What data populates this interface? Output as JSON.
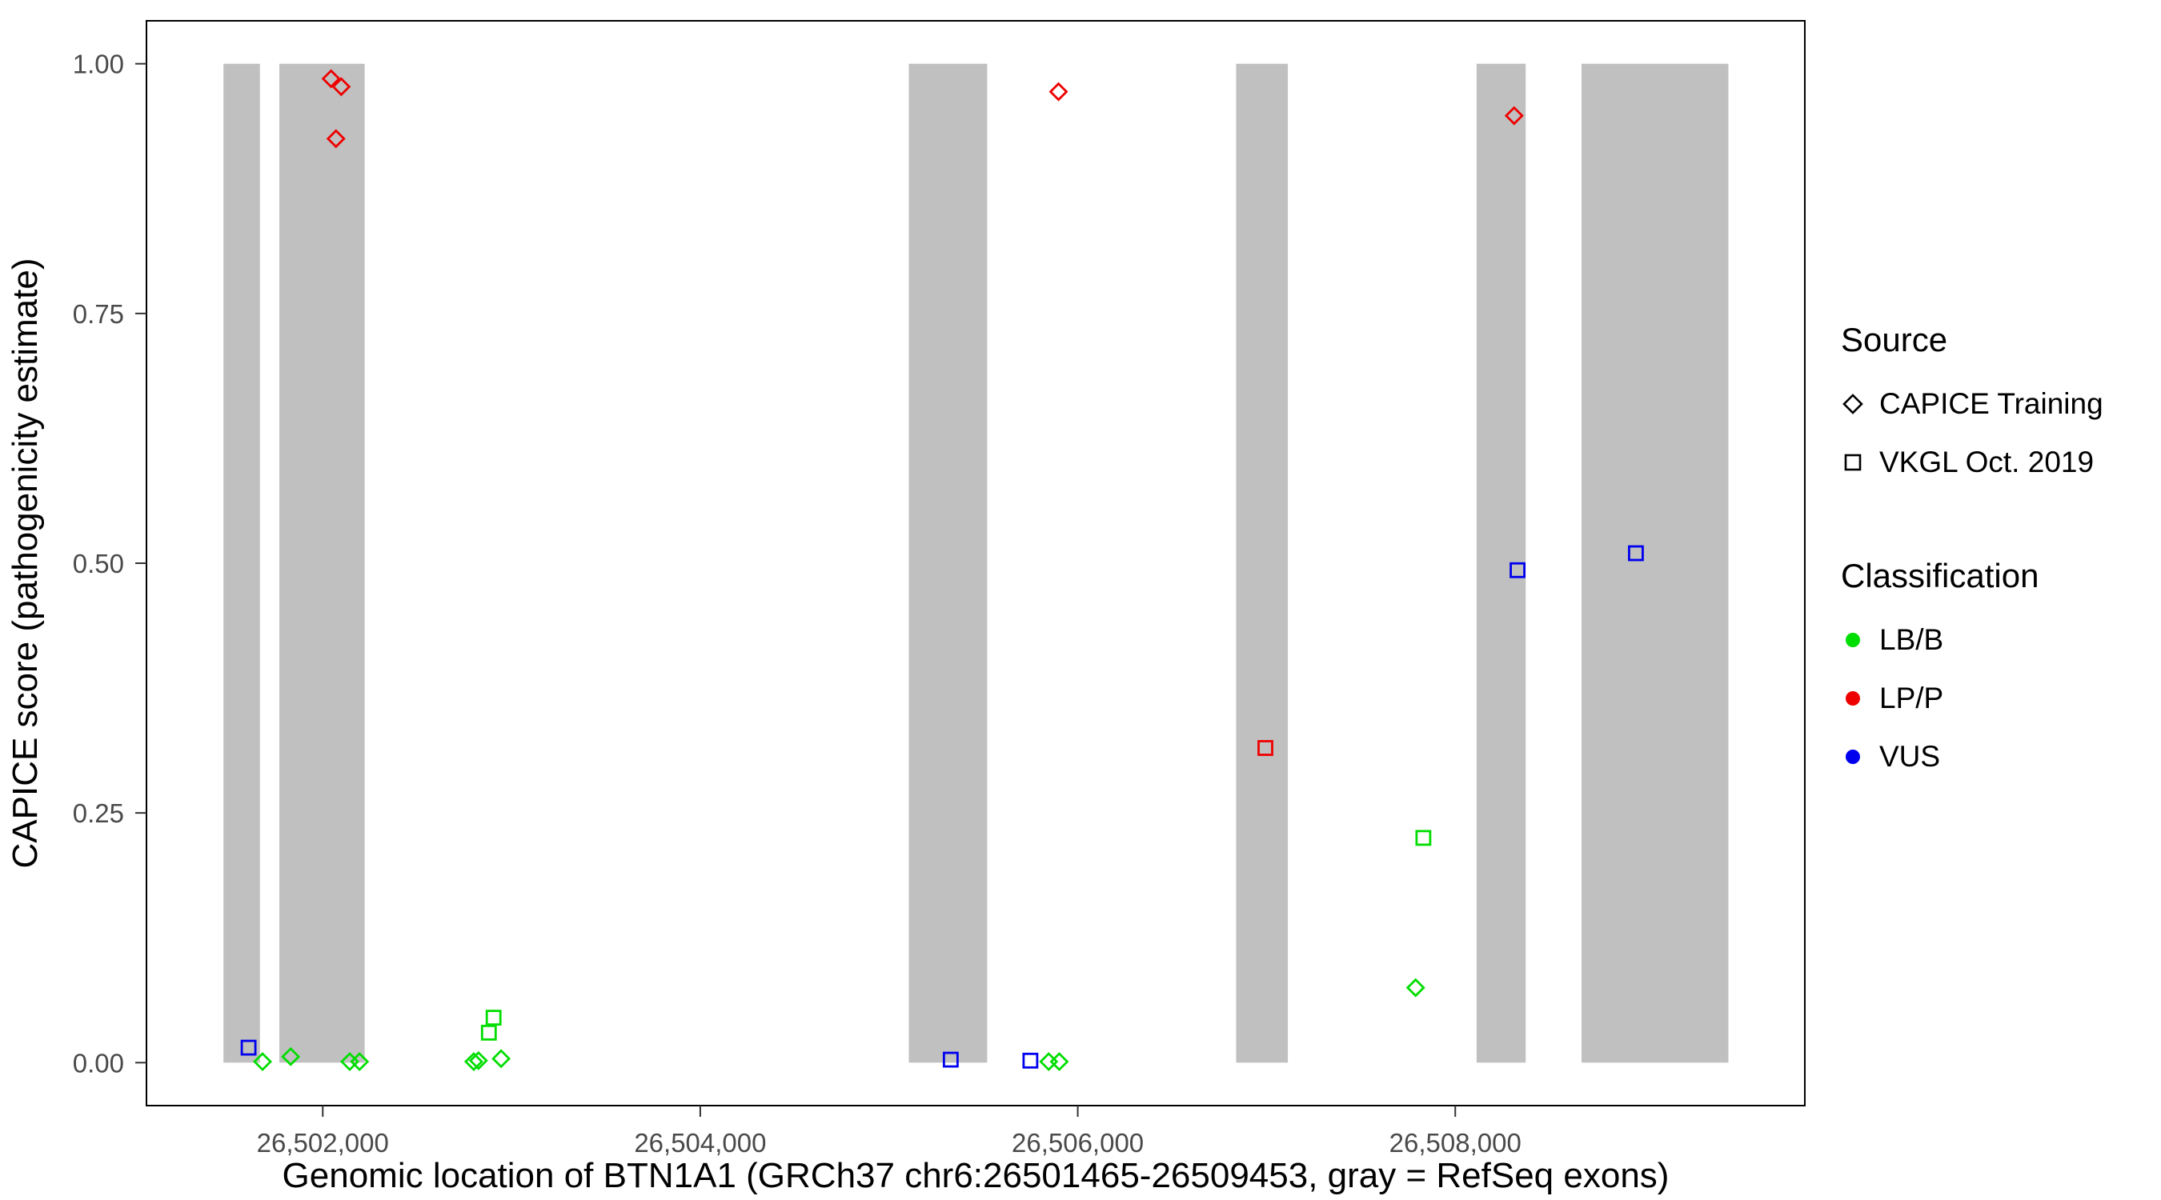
{
  "chart_data": {
    "type": "scatter",
    "title": "",
    "xlabel": "Genomic location of BTN1A1 (GRCh37 chr6:26501465-26509453, gray = RefSeq exons)",
    "ylabel": "CAPICE score (pathogenicity estimate)",
    "xlim": [
      26501066,
      26509852
    ],
    "ylim": [
      -0.043,
      1.043
    ],
    "grid": false,
    "legend_position": "right",
    "exon_color": "#c0c0c0",
    "x_ticks": [
      {
        "value": 26502000,
        "label": "26,502,000"
      },
      {
        "value": 26504000,
        "label": "26,504,000"
      },
      {
        "value": 26506000,
        "label": "26,506,000"
      },
      {
        "value": 26508000,
        "label": "26,508,000"
      }
    ],
    "y_ticks": [
      {
        "value": 0.0,
        "label": "0.00"
      },
      {
        "value": 0.25,
        "label": "0.25"
      },
      {
        "value": 0.5,
        "label": "0.50"
      },
      {
        "value": 0.75,
        "label": "0.75"
      },
      {
        "value": 1.0,
        "label": "1.00"
      }
    ],
    "classification_colors": {
      "LB/B": "#00dd00",
      "LP/P": "#ee0000",
      "VUS": "#0000ee"
    },
    "symbol_by_source": {
      "CAPICE Training": "diamond",
      "VKGL Oct. 2019": "square"
    },
    "exons": [
      [
        26501474,
        26501667
      ],
      [
        26501770,
        26502222
      ],
      [
        26505105,
        26505520
      ],
      [
        26506839,
        26507113
      ],
      [
        26508113,
        26508373
      ],
      [
        26508669,
        26509447
      ]
    ],
    "points": [
      {
        "pos": 26501607,
        "score": 0.015,
        "source": "VKGL Oct. 2019",
        "cls": "VUS"
      },
      {
        "pos": 26501681,
        "score": 0.001,
        "source": "CAPICE Training",
        "cls": "LB/B"
      },
      {
        "pos": 26501830,
        "score": 0.006,
        "source": "CAPICE Training",
        "cls": "LB/B"
      },
      {
        "pos": 26502044,
        "score": 0.985,
        "source": "CAPICE Training",
        "cls": "LP/P"
      },
      {
        "pos": 26502098,
        "score": 0.977,
        "source": "CAPICE Training",
        "cls": "LP/P"
      },
      {
        "pos": 26502070,
        "score": 0.925,
        "source": "CAPICE Training",
        "cls": "LP/P"
      },
      {
        "pos": 26502143,
        "score": 0.001,
        "source": "CAPICE Training",
        "cls": "LB/B"
      },
      {
        "pos": 26502195,
        "score": 0.001,
        "source": "CAPICE Training",
        "cls": "LB/B"
      },
      {
        "pos": 26502800,
        "score": 0.001,
        "source": "CAPICE Training",
        "cls": "LB/B"
      },
      {
        "pos": 26502825,
        "score": 0.002,
        "source": "CAPICE Training",
        "cls": "LB/B"
      },
      {
        "pos": 26502945,
        "score": 0.004,
        "source": "CAPICE Training",
        "cls": "LB/B"
      },
      {
        "pos": 26502880,
        "score": 0.03,
        "source": "VKGL Oct. 2019",
        "cls": "LB/B"
      },
      {
        "pos": 26502905,
        "score": 0.045,
        "source": "VKGL Oct. 2019",
        "cls": "LB/B"
      },
      {
        "pos": 26505327,
        "score": 0.003,
        "source": "VKGL Oct. 2019",
        "cls": "VUS"
      },
      {
        "pos": 26505749,
        "score": 0.002,
        "source": "VKGL Oct. 2019",
        "cls": "VUS"
      },
      {
        "pos": 26505846,
        "score": 0.001,
        "source": "CAPICE Training",
        "cls": "LB/B"
      },
      {
        "pos": 26505902,
        "score": 0.001,
        "source": "CAPICE Training",
        "cls": "LB/B"
      },
      {
        "pos": 26505898,
        "score": 0.972,
        "source": "CAPICE Training",
        "cls": "LP/P"
      },
      {
        "pos": 26506994,
        "score": 0.315,
        "source": "VKGL Oct. 2019",
        "cls": "LP/P"
      },
      {
        "pos": 26507831,
        "score": 0.225,
        "source": "VKGL Oct. 2019",
        "cls": "LB/B"
      },
      {
        "pos": 26507790,
        "score": 0.075,
        "source": "CAPICE Training",
        "cls": "LB/B"
      },
      {
        "pos": 26508312,
        "score": 0.948,
        "source": "CAPICE Training",
        "cls": "LP/P"
      },
      {
        "pos": 26508330,
        "score": 0.493,
        "source": "VKGL Oct. 2019",
        "cls": "VUS"
      },
      {
        "pos": 26508957,
        "score": 0.51,
        "source": "VKGL Oct. 2019",
        "cls": "VUS"
      }
    ]
  },
  "legend": {
    "source": {
      "title": "Source",
      "items": [
        {
          "label": "CAPICE Training",
          "symbol": "diamond"
        },
        {
          "label": "VKGL Oct. 2019",
          "symbol": "square"
        }
      ]
    },
    "classification": {
      "title": "Classification",
      "items": [
        {
          "label": "LB/B",
          "color": "#00dd00"
        },
        {
          "label": "LP/P",
          "color": "#ee0000"
        },
        {
          "label": "VUS",
          "color": "#0000ee"
        }
      ]
    }
  }
}
